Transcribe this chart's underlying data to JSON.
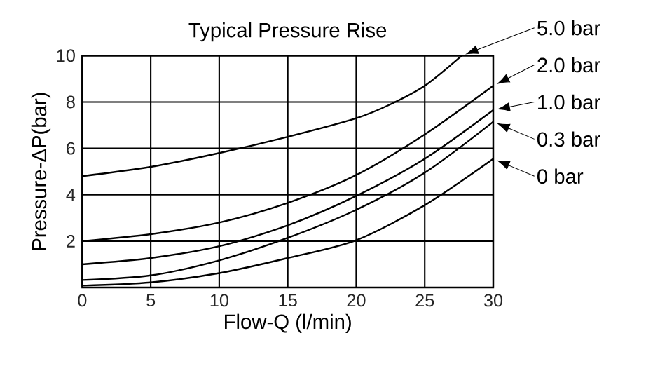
{
  "chart_data": {
    "type": "line",
    "title": "Typical Pressure Rise",
    "xlabel": "Flow-Q (l/min)",
    "ylabel": "Pressure-ΔP(bar)",
    "xlim": [
      0,
      30
    ],
    "ylim": [
      0,
      10
    ],
    "xticks": [
      0,
      5,
      10,
      15,
      20,
      25,
      30
    ],
    "yticks": [
      2,
      4,
      6,
      8,
      10
    ],
    "grid": true,
    "legend": "right",
    "marker": "none",
    "line_style": "solid",
    "series": [
      {
        "name": "5.0 bar",
        "color": "#000000",
        "x": [
          0,
          5,
          10,
          15,
          20,
          22.5,
          25,
          27.7
        ],
        "values": [
          4.8,
          5.2,
          5.8,
          6.5,
          7.3,
          7.9,
          8.7,
          10
        ]
      },
      {
        "name": "2.0 bar",
        "color": "#000000",
        "x": [
          0,
          5,
          10,
          15,
          20,
          25,
          30
        ],
        "values": [
          2.0,
          2.3,
          2.8,
          3.65,
          4.85,
          6.6,
          8.7
        ]
      },
      {
        "name": "1.0 bar",
        "color": "#000000",
        "x": [
          0,
          5,
          10,
          15,
          20,
          25,
          30
        ],
        "values": [
          1.0,
          1.27,
          1.78,
          2.68,
          3.95,
          5.55,
          7.65
        ]
      },
      {
        "name": "0.3 bar",
        "color": "#000000",
        "x": [
          0,
          5,
          10,
          15,
          20,
          25,
          30
        ],
        "values": [
          0.32,
          0.52,
          1.17,
          2.14,
          3.35,
          4.95,
          7.15
        ]
      },
      {
        "name": "0 bar",
        "color": "#000000",
        "x": [
          0,
          5,
          10,
          15,
          20,
          25,
          30
        ],
        "values": [
          0.08,
          0.22,
          0.62,
          1.27,
          2.04,
          3.55,
          5.55
        ]
      }
    ]
  }
}
